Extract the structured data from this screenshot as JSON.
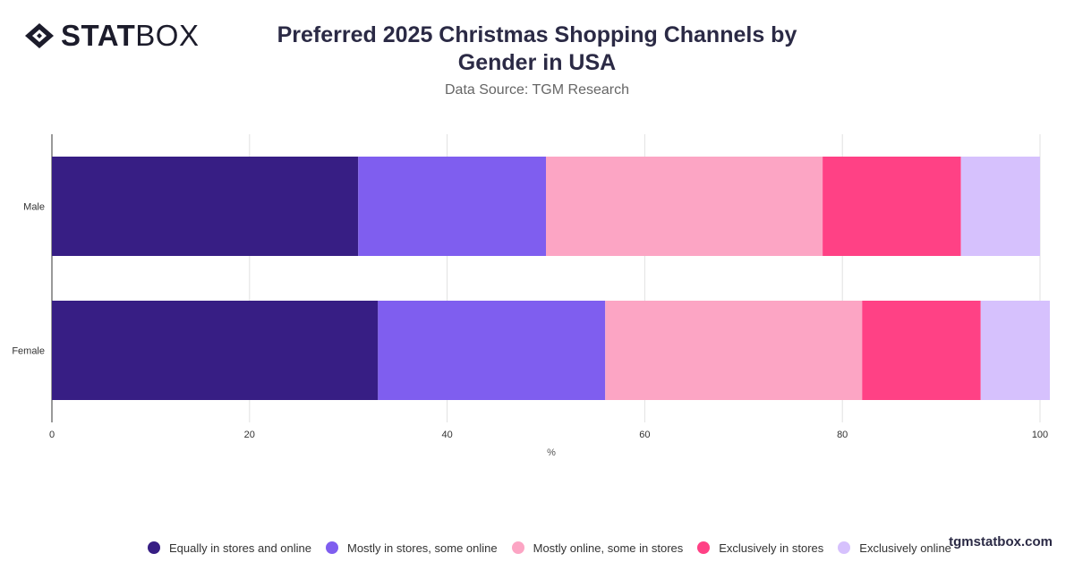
{
  "brand": {
    "logo_bold": "STAT",
    "logo_light": "BOX",
    "watermark": "tgmstatbox.com"
  },
  "header": {
    "title": "Preferred 2025 Christmas Shopping Channels by Gender in USA",
    "subtitle": "Data Source: TGM Research"
  },
  "chart_data": {
    "type": "bar",
    "orientation": "horizontal",
    "stacked": true,
    "categories": [
      "Male",
      "Female"
    ],
    "series": [
      {
        "name": "Equally in stores and online",
        "color": "#371e84",
        "values": [
          31,
          33
        ]
      },
      {
        "name": "Mostly in stores, some online",
        "color": "#7f5eef",
        "values": [
          19,
          23
        ]
      },
      {
        "name": "Mostly online, some in stores",
        "color": "#fca5c4",
        "values": [
          28,
          26
        ]
      },
      {
        "name": "Exclusively in stores",
        "color": "#ff4185",
        "values": [
          14,
          12
        ]
      },
      {
        "name": "Exclusively online",
        "color": "#d6c1fd",
        "values": [
          8,
          7
        ]
      }
    ],
    "xlabel": "%",
    "ylabel": "",
    "xlim": [
      0,
      100
    ],
    "xticks": [
      0,
      20,
      40,
      60,
      80,
      100
    ],
    "grid": true,
    "legend_position": "bottom"
  }
}
